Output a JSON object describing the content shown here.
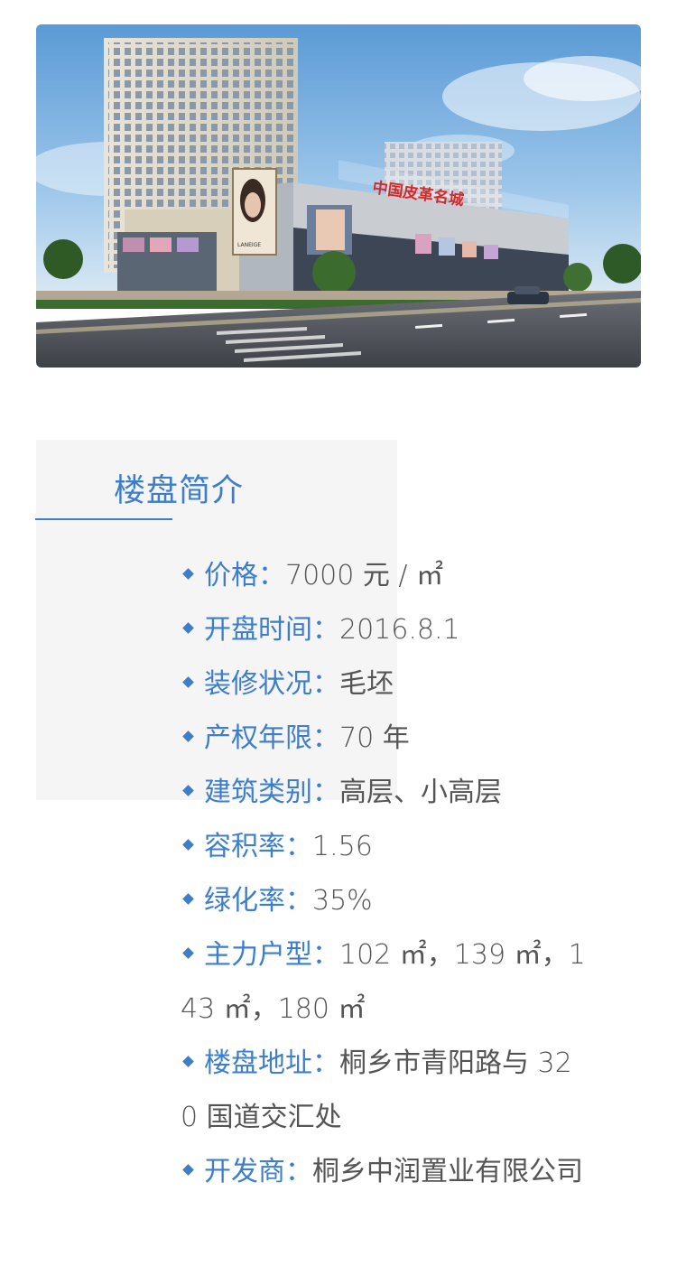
{
  "hero": {
    "alt": "building-rendering",
    "signage": "中国皮革名城",
    "brand": "LANEIGE"
  },
  "section": {
    "title": "楼盘简介"
  },
  "separator": "：",
  "items": [
    {
      "label": "价格",
      "value": "7000 元 / ㎡"
    },
    {
      "label": "开盘时间",
      "value": "2016.8.1"
    },
    {
      "label": "装修状况",
      "value": "毛坯"
    },
    {
      "label": "产权年限",
      "value": "70 年"
    },
    {
      "label": "建筑类别",
      "value": "高层、小高层"
    },
    {
      "label": "容积率",
      "value": "1.56"
    },
    {
      "label": "绿化率",
      "value": "35%"
    },
    {
      "label": "主力户型",
      "value": "102 ㎡，139 ㎡，143 ㎡，180 ㎡"
    },
    {
      "label": "楼盘地址",
      "value": "桐乡市青阳路与 320 国道交汇处"
    },
    {
      "label": "开发商",
      "value": "桐乡中润置业有限公司"
    }
  ],
  "colors": {
    "accent": "#3d7ecc",
    "text": "#555555",
    "panel": "#f5f5f5"
  }
}
